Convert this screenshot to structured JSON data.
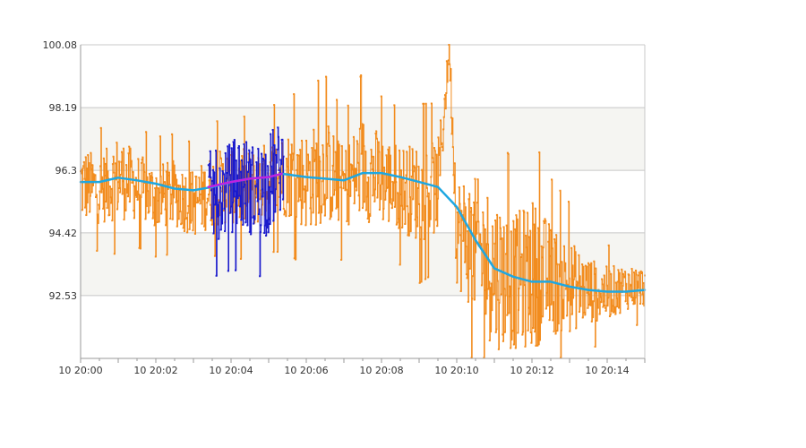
{
  "chart_data": {
    "type": "line",
    "title": "",
    "xlabel": "",
    "ylabel": "",
    "grid": true,
    "ylim": [
      90.64,
      100.08
    ],
    "y_ticks": [
      "100.08",
      "98.19",
      "96.3",
      "94.42",
      "92.53"
    ],
    "y_tick_values": [
      100.08,
      98.19,
      96.3,
      94.42,
      92.53
    ],
    "x_range_minutes": [
      0,
      15
    ],
    "x_tick_labels": [
      "10 20:00",
      "10 20:02",
      "10 20:04",
      "10 20:06",
      "10 20:08",
      "10 20:10",
      "10 20:12",
      "10 20:14"
    ],
    "x_tick_minutes": [
      0,
      2,
      4,
      6,
      8,
      10,
      12,
      14
    ],
    "colors": {
      "raw": "#f28c1e",
      "highlight": "#1a1acc",
      "average": "#1ea7e1",
      "average_highlight": "#c020e0",
      "band": "#f5f5f2",
      "grid": "#c8c8c8",
      "axis": "#999999"
    },
    "series": [
      {
        "role": "raw",
        "x": [
          0,
          0.5,
          1,
          1.5,
          2,
          2.5,
          3,
          3.5,
          4,
          4.5,
          5,
          5.5,
          6,
          6.5,
          7,
          7.5,
          8,
          8.5,
          9,
          9.5,
          9.8,
          10,
          10.5,
          11,
          11.5,
          12,
          12.5,
          13,
          13.5,
          14,
          14.5,
          15
        ],
        "y": [
          95.9,
          95.7,
          96.1,
          95.8,
          95.5,
          95.6,
          95.3,
          95.7,
          95.9,
          95.7,
          96.0,
          96.2,
          96.0,
          96.3,
          95.8,
          96.4,
          96.0,
          95.8,
          95.6,
          95.8,
          100.0,
          94.5,
          94.0,
          93.3,
          92.9,
          93.2,
          93.0,
          92.8,
          92.7,
          92.6,
          92.8,
          92.8
        ],
        "volatility": [
          1.2,
          1.0,
          1.3,
          1.0,
          1.0,
          1.0,
          1.0,
          1.1,
          1.2,
          1.2,
          1.2,
          1.3,
          1.5,
          1.6,
          1.2,
          1.6,
          1.4,
          1.3,
          1.5,
          1.4,
          0.3,
          1.7,
          2.1,
          2.4,
          2.0,
          2.3,
          1.7,
          1.4,
          1.0,
          0.8,
          0.7,
          0.6
        ]
      },
      {
        "role": "highlight",
        "x": [
          3.4,
          3.8,
          4.2,
          4.6,
          5.0,
          5.4
        ],
        "y": [
          95.5,
          95.6,
          96.0,
          95.7,
          95.9,
          96.5
        ],
        "volatility": [
          1.4,
          1.3,
          1.5,
          1.4,
          1.6,
          1.3
        ]
      },
      {
        "role": "average",
        "x": [
          0,
          0.5,
          1,
          1.5,
          2,
          2.5,
          3,
          3.5,
          4,
          4.5,
          5,
          5.35,
          6,
          6.5,
          7,
          7.5,
          8,
          8.5,
          9,
          9.5,
          10,
          10.5,
          11,
          11.5,
          12,
          12.5,
          13,
          13.5,
          14,
          14.5,
          15
        ],
        "y": [
          95.95,
          95.95,
          96.08,
          96.0,
          95.9,
          95.75,
          95.7,
          95.8,
          95.95,
          96.05,
          96.1,
          96.2,
          96.1,
          96.05,
          96.0,
          96.22,
          96.22,
          96.1,
          95.95,
          95.8,
          95.2,
          94.2,
          93.35,
          93.1,
          92.95,
          92.95,
          92.8,
          92.7,
          92.65,
          92.65,
          92.7
        ]
      },
      {
        "role": "average_highlight",
        "x": [
          3.4,
          4.0,
          4.5,
          5.0,
          5.35
        ],
        "y": [
          95.8,
          95.95,
          96.05,
          96.1,
          96.2
        ]
      }
    ]
  }
}
